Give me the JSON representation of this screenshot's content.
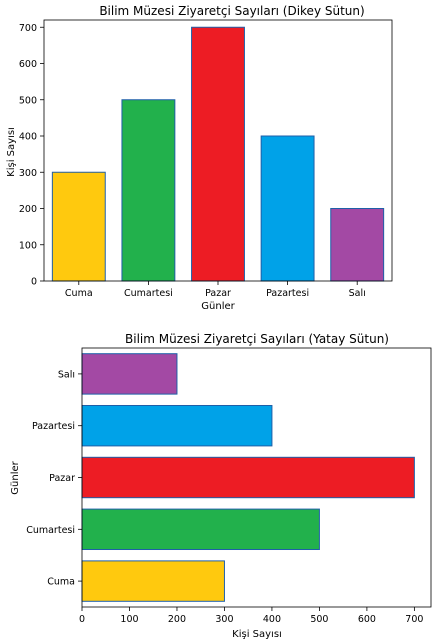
{
  "chart_data": [
    {
      "type": "bar",
      "orientation": "vertical",
      "title": "Bilim Müzesi Ziyaretçi Sayıları (Dikey Sütun)",
      "xlabel": "Günler",
      "ylabel": "Kişi Sayısı",
      "categories": [
        "Cuma",
        "Cumartesi",
        "Pazar",
        "Pazartesi",
        "Salı"
      ],
      "values": [
        300,
        500,
        700,
        400,
        200
      ],
      "colors": [
        "#FFC90E",
        "#22B14C",
        "#ED1C24",
        "#00A2E8",
        "#A349A4"
      ],
      "edge_color": "#1F5FA8",
      "ylim": [
        0,
        720
      ],
      "yticks": [
        0,
        100,
        200,
        300,
        400,
        500,
        600,
        700
      ],
      "grid": false
    },
    {
      "type": "bar",
      "orientation": "horizontal",
      "title": "Bilim Müzesi Ziyaretçi Sayıları (Yatay Sütun)",
      "xlabel": "Kişi Sayısı",
      "ylabel": "Günler",
      "categories": [
        "Cuma",
        "Cumartesi",
        "Pazar",
        "Pazartesi",
        "Salı"
      ],
      "values": [
        300,
        500,
        700,
        400,
        200
      ],
      "colors": [
        "#FFC90E",
        "#22B14C",
        "#ED1C24",
        "#00A2E8",
        "#A349A4"
      ],
      "edge_color": "#1F5FA8",
      "xlim": [
        0,
        735
      ],
      "xticks": [
        0,
        100,
        200,
        300,
        400,
        500,
        600,
        700
      ],
      "grid": false
    }
  ]
}
